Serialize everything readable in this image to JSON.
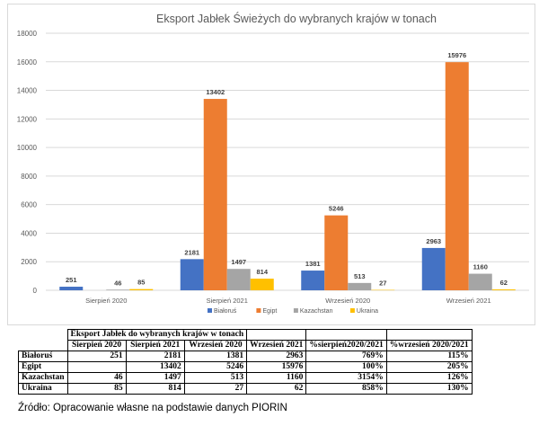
{
  "chart_data": {
    "type": "bar",
    "title": "Eksport Jabłek Świeżych do wybranych krajów w tonach",
    "categories": [
      "Sierpień 2020",
      "Sierpień 2021",
      "Wrzesień 2020",
      "Wrzesień 2021"
    ],
    "series": [
      {
        "name": "Białoruś",
        "color": "#4472c4",
        "values": [
          251,
          2181,
          1381,
          2963
        ]
      },
      {
        "name": "Egipt",
        "color": "#ed7d31",
        "values": [
          null,
          13402,
          5246,
          15976
        ]
      },
      {
        "name": "Kazachstan",
        "color": "#a5a5a5",
        "values": [
          46,
          1497,
          513,
          1160
        ]
      },
      {
        "name": "Ukraina",
        "color": "#ffc000",
        "values": [
          85,
          814,
          27,
          62
        ]
      }
    ],
    "ylim": [
      0,
      18000
    ],
    "yticks": [
      0,
      2000,
      4000,
      6000,
      8000,
      10000,
      12000,
      14000,
      16000,
      18000
    ],
    "grid": true,
    "legend": "bottom",
    "data_labels": true
  },
  "table": {
    "title": "Eksport Jabłek do wybranych krajów w tonach",
    "headers": [
      "Sierpień 2020",
      "Sierpień 2021",
      "Wrzesień 2020",
      "Wrzesień 2021",
      "%sierpień2020/2021",
      "%wrzesień 2020/2021"
    ],
    "rows": [
      {
        "country": "Białoruś",
        "cells": [
          "251",
          "2181",
          "1381",
          "2963",
          "769%",
          "115%"
        ]
      },
      {
        "country": "Egipt",
        "cells": [
          "",
          "13402",
          "5246",
          "15976",
          "100%",
          "205%"
        ]
      },
      {
        "country": "Kazachstan",
        "cells": [
          "46",
          "1497",
          "513",
          "1160",
          "3154%",
          "126%"
        ]
      },
      {
        "country": "Ukraina",
        "cells": [
          "85",
          "814",
          "27",
          "62",
          "858%",
          "130%"
        ]
      }
    ]
  },
  "source": "Źródło: Opracowanie własne na podstawie danych PIORIN"
}
